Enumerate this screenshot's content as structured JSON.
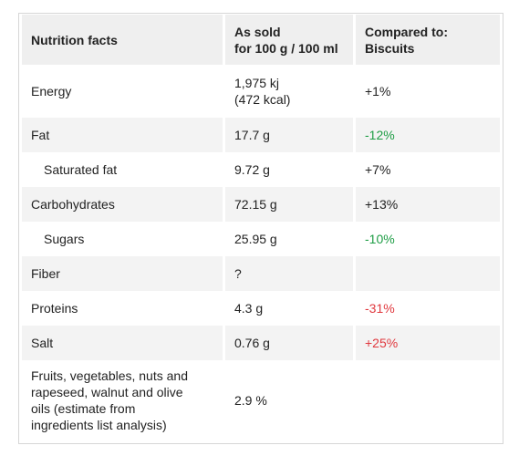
{
  "table": {
    "headers": [
      "Nutrition facts",
      "As sold\nfor 100 g / 100 ml",
      "Compared to: Biscuits"
    ],
    "header_line1": "As sold",
    "header_line2": "for 100 g / 100 ml",
    "rows": [
      {
        "name": "Energy",
        "value_line1": "1,975 kj",
        "value_line2": "(472 kcal)",
        "compare": "+1%",
        "compare_status": "neutral"
      },
      {
        "name": "Fat",
        "value": "17.7 g",
        "compare": "-12%",
        "compare_status": "good"
      },
      {
        "name": "Saturated fat",
        "value": "9.72 g",
        "compare": "+7%",
        "compare_status": "neutral"
      },
      {
        "name": "Carbohydrates",
        "value": "72.15 g",
        "compare": "+13%",
        "compare_status": "neutral"
      },
      {
        "name": "Sugars",
        "value": "25.95 g",
        "compare": "-10%",
        "compare_status": "good"
      },
      {
        "name": "Fiber",
        "value": "?",
        "compare": "",
        "compare_status": "neutral"
      },
      {
        "name": "Proteins",
        "value": "4.3 g",
        "compare": "-31%",
        "compare_status": "bad"
      },
      {
        "name": "Salt",
        "value": "0.76 g",
        "compare": "+25%",
        "compare_status": "bad"
      },
      {
        "name_lines": [
          "Fruits, vegetables, nuts and",
          "rapeseed, walnut and olive",
          "oils (estimate from",
          "ingredients list analysis)"
        ],
        "value": "2.9 %",
        "compare": "",
        "compare_status": "neutral"
      }
    ]
  },
  "colors": {
    "good": "#1e9d45",
    "bad": "#e0383e",
    "header_bg": "#efefef",
    "stripe_bg": "#f3f3f3"
  }
}
